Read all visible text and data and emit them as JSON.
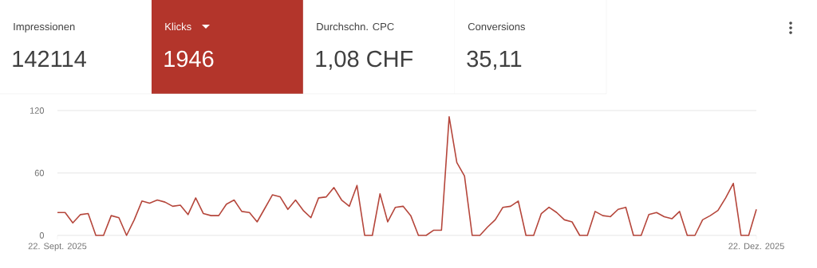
{
  "chart_data": [
    {
      "type": "other",
      "annotations": [
        "Impressionen",
        "142114",
        "Klicks",
        "1946",
        "Durchschn. CPC",
        "1,08 CHF",
        "Conversions",
        "35,11"
      ],
      "colors": [
        "#ffffff",
        "#b3352b",
        "#ffffff",
        "#ffffff"
      ]
    },
    {
      "type": "line",
      "color": "#b5463b",
      "marker": "none",
      "line_style": "solid",
      "grid": "y",
      "x": [
        "2025-09-22",
        "2025-09-23",
        "2025-09-24",
        "2025-09-25",
        "2025-09-26",
        "2025-09-27",
        "2025-09-28",
        "2025-09-29",
        "2025-09-30",
        "2025-10-01",
        "2025-10-02",
        "2025-10-03",
        "2025-10-04",
        "2025-10-05",
        "2025-10-06",
        "2025-10-07",
        "2025-10-08",
        "2025-10-09",
        "2025-10-10",
        "2025-10-11",
        "2025-10-12",
        "2025-10-13",
        "2025-10-14",
        "2025-10-15",
        "2025-10-16",
        "2025-10-17",
        "2025-10-18",
        "2025-10-19",
        "2025-10-20",
        "2025-10-21",
        "2025-10-22",
        "2025-10-23",
        "2025-10-24",
        "2025-10-25",
        "2025-10-26",
        "2025-10-27",
        "2025-10-28",
        "2025-10-29",
        "2025-10-30",
        "2025-10-31",
        "2025-11-01",
        "2025-11-02",
        "2025-11-03",
        "2025-11-04",
        "2025-11-05",
        "2025-11-06",
        "2025-11-07",
        "2025-11-08",
        "2025-11-09",
        "2025-11-10",
        "2025-11-11",
        "2025-11-12",
        "2025-11-13",
        "2025-11-14",
        "2025-11-15",
        "2025-11-16",
        "2025-11-17",
        "2025-11-18",
        "2025-11-19",
        "2025-11-20",
        "2025-11-21",
        "2025-11-22",
        "2025-11-23",
        "2025-11-24",
        "2025-11-25",
        "2025-11-26",
        "2025-11-27",
        "2025-11-28",
        "2025-11-29",
        "2025-11-30",
        "2025-12-01",
        "2025-12-02",
        "2025-12-03",
        "2025-12-04",
        "2025-12-05",
        "2025-12-06",
        "2025-12-07",
        "2025-12-08",
        "2025-12-09",
        "2025-12-10",
        "2025-12-11",
        "2025-12-12",
        "2025-12-13",
        "2025-12-14",
        "2025-12-15",
        "2025-12-16",
        "2025-12-17",
        "2025-12-18",
        "2025-12-19",
        "2025-12-20",
        "2025-12-21",
        "2025-12-22"
      ],
      "values": [
        22,
        22,
        12,
        20,
        21,
        0,
        0,
        19,
        17,
        0,
        15,
        33,
        31,
        34,
        32,
        28,
        29,
        20,
        36,
        21,
        19,
        19,
        30,
        34,
        23,
        22,
        13,
        26,
        39,
        37,
        25,
        34,
        24,
        17,
        36,
        37,
        46,
        34,
        28,
        48,
        0,
        0,
        40,
        13,
        27,
        28,
        19,
        0,
        0,
        5,
        5,
        114,
        70,
        57,
        0,
        0,
        8,
        15,
        27,
        28,
        33,
        0,
        0,
        21,
        27,
        22,
        15,
        13,
        0,
        0,
        23,
        19,
        18,
        25,
        27,
        0,
        0,
        20,
        22,
        18,
        16,
        23,
        0,
        0,
        15,
        19,
        24,
        36,
        50,
        0,
        0,
        25
      ],
      "xlim": [
        "2025-09-22",
        "2025-12-22"
      ],
      "ylim": [
        0,
        120
      ],
      "xticks": [
        {
          "value": "2025-09-22",
          "label": "22. Sept. 2025"
        },
        {
          "value": "2025-12-22",
          "label": "22. Dez. 2025"
        }
      ],
      "yticks": [
        0,
        60,
        120
      ]
    }
  ]
}
